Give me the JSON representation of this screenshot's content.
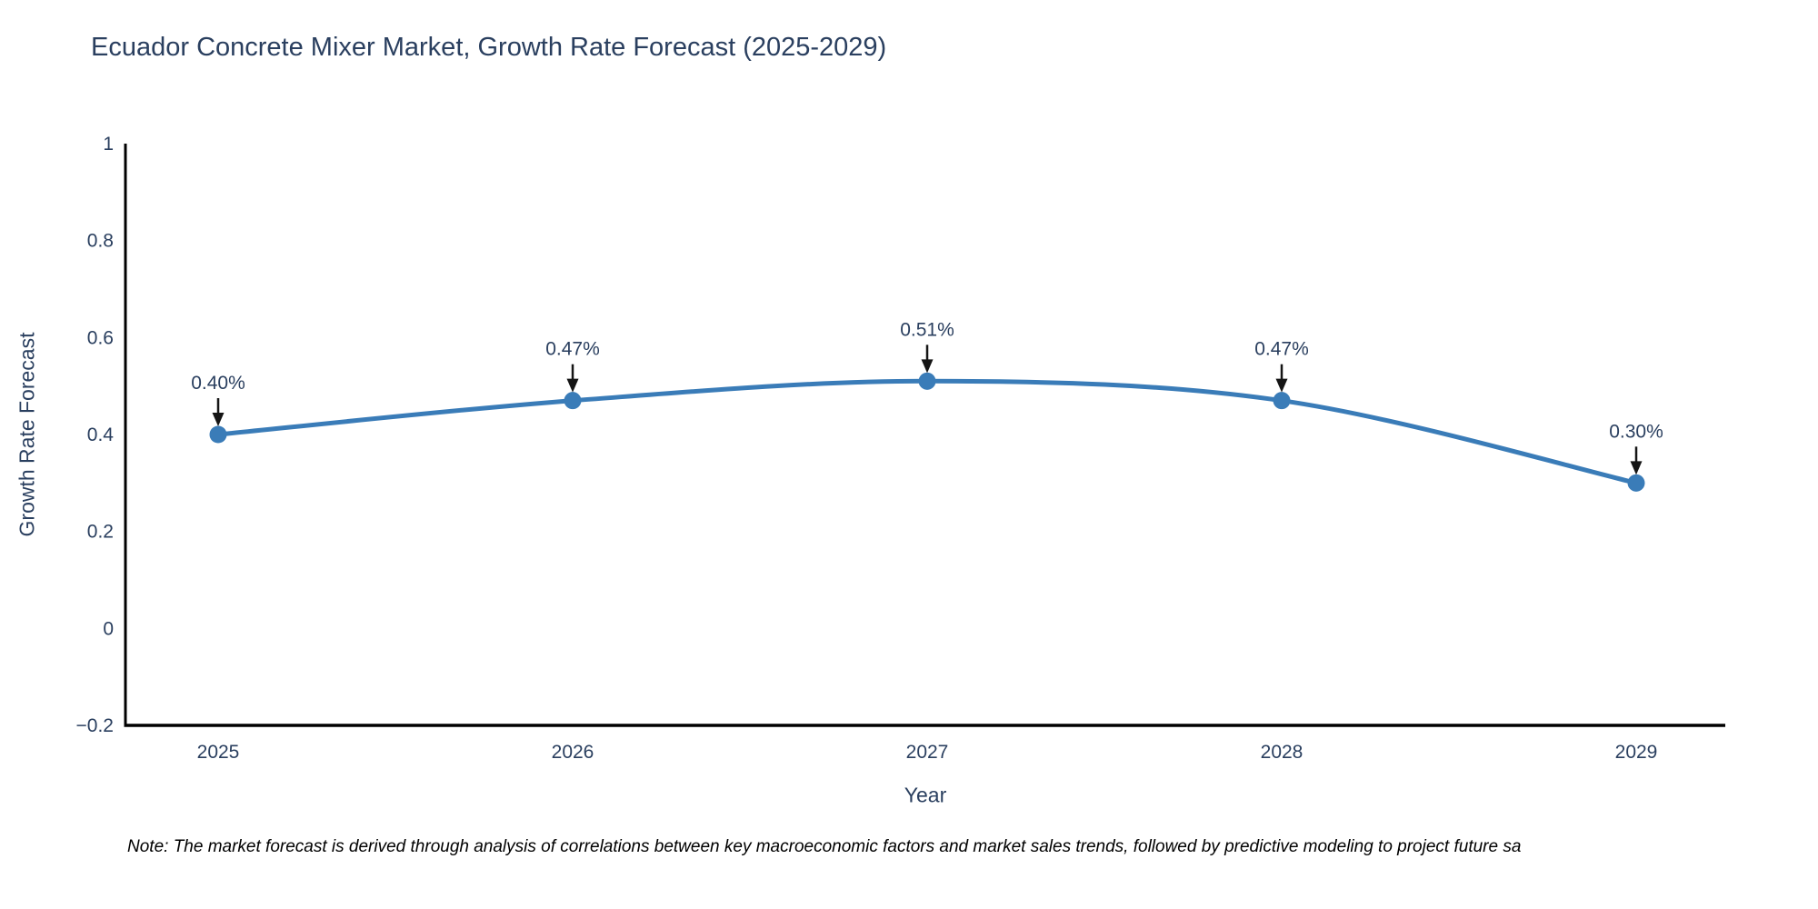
{
  "page": {
    "background": "#ffffff"
  },
  "note": "Note: The market forecast is derived through analysis of correlations between key macroeconomic factors and market sales trends, followed by predictive modeling to project future sa",
  "chart_data": {
    "type": "line",
    "title": "Ecuador Concrete Mixer Market, Growth Rate Forecast (2025-2029)",
    "xlabel": "Year",
    "ylabel": "Growth Rate Forecast",
    "categories": [
      "2025",
      "2026",
      "2027",
      "2028",
      "2029"
    ],
    "values": [
      0.4,
      0.47,
      0.51,
      0.47,
      0.3
    ],
    "point_labels": [
      "0.40%",
      "0.47%",
      "0.51%",
      "0.47%",
      "0.30%"
    ],
    "ylim": [
      -0.2,
      1
    ],
    "yticks": [
      {
        "v": 1,
        "label": "1"
      },
      {
        "v": 0.8,
        "label": "0.8"
      },
      {
        "v": 0.6,
        "label": "0.6"
      },
      {
        "v": 0.4,
        "label": "0.4"
      },
      {
        "v": 0.2,
        "label": "0.2"
      },
      {
        "v": 0,
        "label": "0"
      },
      {
        "v": -0.2,
        "label": "−0.2"
      }
    ],
    "line_shape": "spline",
    "grid": false,
    "legend": "none",
    "colors": {
      "line": "#3a7cb8",
      "marker": "#3a7cb8",
      "axis": "#000000",
      "text": "#2a3f5f",
      "annotation_text": "#2a3f5f",
      "annotation_arrow": "#151515",
      "note_text": "#000000"
    }
  }
}
